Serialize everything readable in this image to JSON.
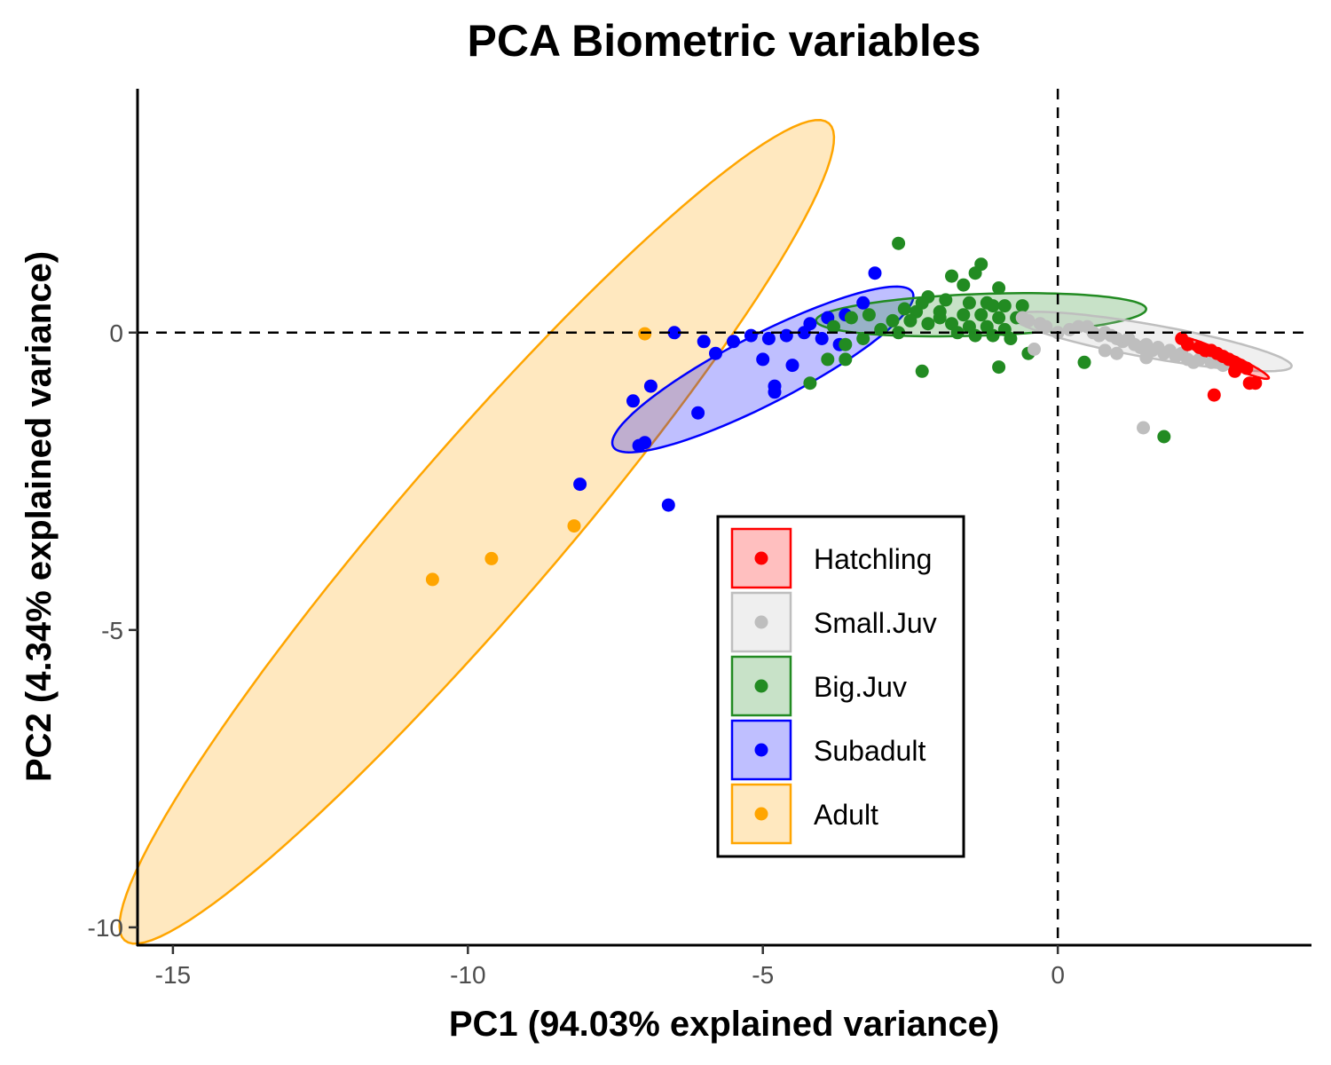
{
  "chart_data": {
    "type": "scatter",
    "title": "PCA Biometric variables",
    "xlabel": "PC1 (94.03% explained variance)",
    "ylabel": "PC2 (4.34% explained variance)",
    "xlim": [
      -15.6,
      4.3
    ],
    "ylim": [
      -10.3,
      4.1
    ],
    "x_ticks": [
      -15,
      -10,
      -5,
      0
    ],
    "x_tick_labels": [
      "-15",
      "-10",
      "-5",
      "0"
    ],
    "y_ticks": [
      -10,
      -5,
      0
    ],
    "y_tick_labels": [
      "-10",
      "-5",
      "0"
    ],
    "reference_lines": {
      "x": 0,
      "y": 0,
      "style": "dashed"
    },
    "grid": false,
    "legend_position": "bottom-center",
    "series": [
      {
        "name": "Hatchling",
        "color": "#ff0000",
        "points": [
          [
            2.1,
            -0.1
          ],
          [
            2.2,
            -0.2
          ],
          [
            2.4,
            -0.25
          ],
          [
            2.5,
            -0.3
          ],
          [
            2.6,
            -0.3
          ],
          [
            2.7,
            -0.35
          ],
          [
            2.8,
            -0.4
          ],
          [
            2.9,
            -0.45
          ],
          [
            3.0,
            -0.5
          ],
          [
            3.1,
            -0.55
          ],
          [
            3.2,
            -0.6
          ],
          [
            3.0,
            -0.65
          ],
          [
            3.25,
            -0.85
          ],
          [
            3.35,
            -0.85
          ],
          [
            2.65,
            -1.05
          ]
        ],
        "ellipse": {
          "cx": 2.8,
          "cy": -0.42,
          "a": 0.85,
          "b": 0.1,
          "angle_deg": -24
        }
      },
      {
        "name": "Small.Juv",
        "color": "#bebebe",
        "points": [
          [
            -0.6,
            0.25
          ],
          [
            -0.5,
            0.2
          ],
          [
            -0.3,
            0.15
          ],
          [
            -0.2,
            0.1
          ],
          [
            0.0,
            0.0
          ],
          [
            0.2,
            0.05
          ],
          [
            0.35,
            0.1
          ],
          [
            0.5,
            0.1
          ],
          [
            0.6,
            0.0
          ],
          [
            0.7,
            -0.05
          ],
          [
            0.8,
            0.0
          ],
          [
            0.9,
            -0.05
          ],
          [
            1.0,
            -0.1
          ],
          [
            1.1,
            -0.15
          ],
          [
            1.2,
            -0.1
          ],
          [
            1.3,
            -0.2
          ],
          [
            1.4,
            -0.25
          ],
          [
            1.5,
            -0.2
          ],
          [
            1.6,
            -0.3
          ],
          [
            1.7,
            -0.25
          ],
          [
            1.8,
            -0.35
          ],
          [
            1.9,
            -0.3
          ],
          [
            2.0,
            -0.4
          ],
          [
            2.1,
            -0.35
          ],
          [
            2.2,
            -0.45
          ],
          [
            2.4,
            -0.45
          ],
          [
            2.6,
            -0.5
          ],
          [
            2.8,
            -0.55
          ],
          [
            1.0,
            -0.35
          ],
          [
            1.5,
            -0.42
          ],
          [
            0.8,
            -0.3
          ],
          [
            -0.4,
            -0.28
          ],
          [
            1.45,
            -1.6
          ],
          [
            2.3,
            -0.5
          ]
        ],
        "ellipse": {
          "cx": 1.6,
          "cy": -0.15,
          "a": 2.4,
          "b": 0.28,
          "angle_deg": -10
        }
      },
      {
        "name": "Big.Juv",
        "color": "#228b22",
        "points": [
          [
            -2.7,
            1.5
          ],
          [
            -1.3,
            1.15
          ],
          [
            -1.4,
            1.0
          ],
          [
            -1.8,
            0.95
          ],
          [
            -1.6,
            0.8
          ],
          [
            -1.0,
            0.75
          ],
          [
            -2.2,
            0.6
          ],
          [
            -1.9,
            0.55
          ],
          [
            -1.5,
            0.5
          ],
          [
            -1.2,
            0.5
          ],
          [
            -0.9,
            0.45
          ],
          [
            -0.6,
            0.45
          ],
          [
            -2.6,
            0.4
          ],
          [
            -2.4,
            0.35
          ],
          [
            -2.0,
            0.35
          ],
          [
            -1.6,
            0.3
          ],
          [
            -1.3,
            0.3
          ],
          [
            -1.0,
            0.25
          ],
          [
            -0.7,
            0.25
          ],
          [
            -2.8,
            0.2
          ],
          [
            -2.5,
            0.2
          ],
          [
            -2.2,
            0.15
          ],
          [
            -1.8,
            0.15
          ],
          [
            -1.5,
            0.1
          ],
          [
            -1.2,
            0.1
          ],
          [
            -0.9,
            0.05
          ],
          [
            -3.0,
            0.05
          ],
          [
            -2.7,
            0.0
          ],
          [
            -1.7,
            0.0
          ],
          [
            -1.4,
            -0.05
          ],
          [
            -1.1,
            -0.05
          ],
          [
            -0.8,
            -0.1
          ],
          [
            -3.3,
            -0.1
          ],
          [
            -3.2,
            0.3
          ],
          [
            -3.5,
            0.25
          ],
          [
            -3.8,
            0.1
          ],
          [
            -3.6,
            -0.2
          ],
          [
            -3.9,
            -0.45
          ],
          [
            -3.6,
            -0.45
          ],
          [
            -2.3,
            -0.65
          ],
          [
            -1.0,
            -0.58
          ],
          [
            0.45,
            -0.5
          ],
          [
            -4.2,
            -0.85
          ],
          [
            -0.5,
            -0.35
          ],
          [
            1.8,
            -1.75
          ],
          [
            -2.0,
            0.25
          ],
          [
            -1.1,
            0.45
          ],
          [
            -2.3,
            0.5
          ]
        ],
        "ellipse": {
          "cx": -1.3,
          "cy": 0.3,
          "a": 2.8,
          "b": 0.35,
          "angle_deg": 2
        }
      },
      {
        "name": "Subadult",
        "color": "#0000ff",
        "points": [
          [
            -3.1,
            1.0
          ],
          [
            -3.3,
            0.5
          ],
          [
            -3.6,
            0.3
          ],
          [
            -3.9,
            0.25
          ],
          [
            -4.2,
            0.15
          ],
          [
            -4.3,
            0.0
          ],
          [
            -4.0,
            -0.1
          ],
          [
            -3.7,
            -0.2
          ],
          [
            -4.6,
            -0.05
          ],
          [
            -4.9,
            -0.1
          ],
          [
            -5.2,
            -0.05
          ],
          [
            -5.5,
            -0.15
          ],
          [
            -4.8,
            -0.9
          ],
          [
            -4.8,
            -1.0
          ],
          [
            -6.5,
            0.0
          ],
          [
            -6.9,
            -0.9
          ],
          [
            -7.2,
            -1.15
          ],
          [
            -7.0,
            -1.85
          ],
          [
            -7.1,
            -1.9
          ],
          [
            -6.1,
            -1.35
          ],
          [
            -8.1,
            -2.55
          ],
          [
            -6.6,
            -2.9
          ],
          [
            -6.0,
            -0.15
          ],
          [
            -5.8,
            -0.35
          ],
          [
            -5.0,
            -0.45
          ],
          [
            -4.5,
            -0.55
          ]
        ],
        "ellipse": {
          "cx": -5.0,
          "cy": -0.62,
          "a": 2.85,
          "b": 0.58,
          "angle_deg": 27
        }
      },
      {
        "name": "Adult",
        "color": "#ffa500",
        "points": [
          [
            -7.0,
            -0.02
          ],
          [
            -8.2,
            -3.25
          ],
          [
            -9.6,
            -3.8
          ],
          [
            -10.6,
            -4.15
          ]
        ],
        "ellipse": {
          "cx": -9.85,
          "cy": -3.35,
          "a": 9.1,
          "b": 1.35,
          "angle_deg": 49
        }
      }
    ]
  }
}
